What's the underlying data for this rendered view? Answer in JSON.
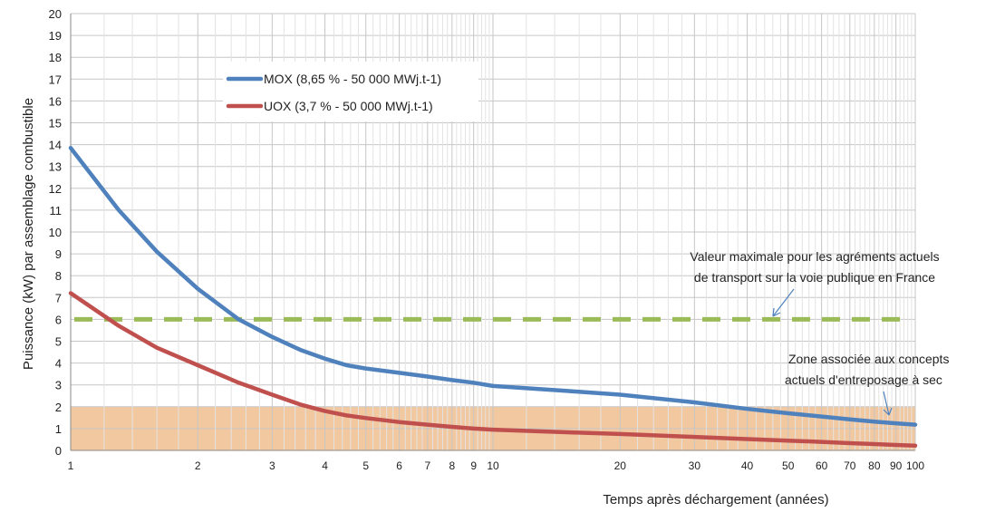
{
  "chart_data": {
    "type": "line",
    "xscale": "log",
    "xlim": [
      1,
      100
    ],
    "ylim": [
      0,
      20
    ],
    "grid": true,
    "xlabel": "Temps après déchargement (années)",
    "ylabel": "Puissance (kW) par assemblage combustible",
    "x_ticks": [
      1,
      2,
      3,
      4,
      5,
      6,
      7,
      8,
      9,
      10,
      20,
      30,
      40,
      50,
      60,
      70,
      80,
      90,
      100
    ],
    "y_ticks": [
      0,
      1,
      2,
      3,
      4,
      5,
      6,
      7,
      8,
      9,
      10,
      11,
      12,
      13,
      14,
      15,
      16,
      17,
      18,
      19,
      20
    ],
    "legend_position": "top-left",
    "series": [
      {
        "name": "MOX (8,65 % - 50 000 MWj.t-1)",
        "color": "#4f81bd",
        "points": [
          [
            1,
            13.85
          ],
          [
            1.3,
            11.0
          ],
          [
            1.6,
            9.1
          ],
          [
            2,
            7.4
          ],
          [
            2.5,
            6.0
          ],
          [
            3,
            5.2
          ],
          [
            3.5,
            4.6
          ],
          [
            4,
            4.2
          ],
          [
            4.5,
            3.9
          ],
          [
            5,
            3.75
          ],
          [
            6,
            3.55
          ],
          [
            7,
            3.38
          ],
          [
            8,
            3.22
          ],
          [
            9,
            3.1
          ],
          [
            10,
            2.95
          ],
          [
            15,
            2.72
          ],
          [
            20,
            2.55
          ],
          [
            30,
            2.2
          ],
          [
            40,
            1.9
          ],
          [
            50,
            1.7
          ],
          [
            60,
            1.55
          ],
          [
            70,
            1.42
          ],
          [
            80,
            1.32
          ],
          [
            90,
            1.24
          ],
          [
            100,
            1.18
          ]
        ]
      },
      {
        "name": "UOX (3,7 % - 50 000 MWj.t-1)",
        "color": "#c0504d",
        "points": [
          [
            1,
            7.2
          ],
          [
            1.3,
            5.7
          ],
          [
            1.6,
            4.7
          ],
          [
            2,
            3.9
          ],
          [
            2.5,
            3.1
          ],
          [
            3,
            2.55
          ],
          [
            3.5,
            2.1
          ],
          [
            4,
            1.8
          ],
          [
            4.5,
            1.6
          ],
          [
            5,
            1.48
          ],
          [
            6,
            1.3
          ],
          [
            7,
            1.18
          ],
          [
            8,
            1.08
          ],
          [
            9,
            1.0
          ],
          [
            10,
            0.95
          ],
          [
            15,
            0.83
          ],
          [
            20,
            0.75
          ],
          [
            30,
            0.62
          ],
          [
            40,
            0.52
          ],
          [
            50,
            0.45
          ],
          [
            60,
            0.39
          ],
          [
            70,
            0.33
          ],
          [
            80,
            0.29
          ],
          [
            90,
            0.25
          ],
          [
            100,
            0.22
          ]
        ]
      }
    ],
    "reference_line": {
      "y": 6,
      "color": "#9bbb59",
      "annotation_lines": [
        "Valeur maximale pour les agréments actuels",
        "de transport sur la voie publique en France"
      ]
    },
    "zone": {
      "y_range": [
        0,
        2
      ],
      "color": "#f2c8a0",
      "annotation_lines": [
        "Zone associée aux concepts",
        "actuels d'entreposage à sec"
      ]
    }
  }
}
